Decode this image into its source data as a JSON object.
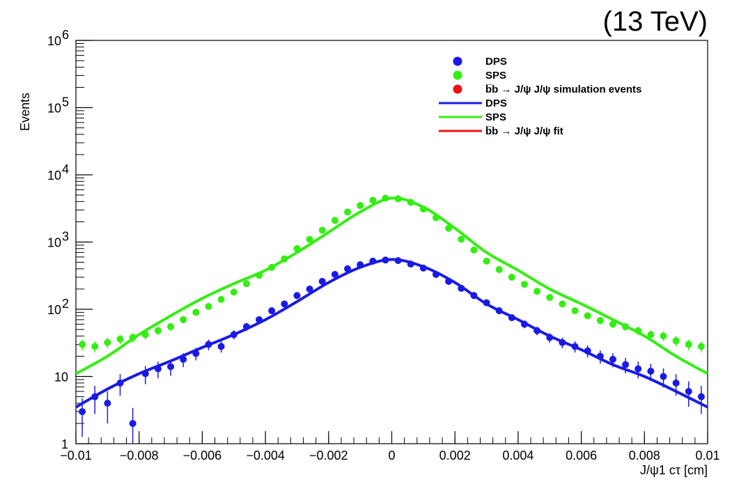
{
  "energy_label": "(13 TeV)",
  "chart_data": {
    "type": "scatter",
    "xlabel": "J/ψ1 cτ [cm]",
    "ylabel": "Events",
    "xlim": [
      -0.01,
      0.01
    ],
    "ylim": [
      1,
      1000000
    ],
    "yscale": "log",
    "grid": false,
    "legend_position": "top-right",
    "x_ticks": [
      -0.01,
      -0.008,
      -0.006,
      -0.004,
      -0.002,
      0,
      0.002,
      0.004,
      0.006,
      0.008,
      0.01
    ],
    "x_tick_labels": [
      "−0.01",
      "−0.008",
      "−0.006",
      "−0.004",
      "−0.002",
      "0",
      "0.002",
      "0.004",
      "0.006",
      "0.008",
      "0.01"
    ],
    "y_ticks": [
      {
        "value": 1,
        "base": "1",
        "exp": ""
      },
      {
        "value": 10,
        "base": "10",
        "exp": ""
      },
      {
        "value": 100,
        "base": "10",
        "exp": "2"
      },
      {
        "value": 1000,
        "base": "10",
        "exp": "3"
      },
      {
        "value": 10000,
        "base": "10",
        "exp": "4"
      },
      {
        "value": 100000,
        "base": "10",
        "exp": "5"
      },
      {
        "value": 1000000,
        "base": "10",
        "exp": "6"
      }
    ],
    "legend": [
      {
        "kind": "marker",
        "color": "#1a1ae6",
        "label": "DPS"
      },
      {
        "kind": "marker",
        "color": "#33ee11",
        "label": "SPS"
      },
      {
        "kind": "marker",
        "color": "#ee1111",
        "label": "b̅b → J/ψ J/ψ simulation events"
      },
      {
        "kind": "line",
        "color": "#1a1ae6",
        "label": "DPS"
      },
      {
        "kind": "line",
        "color": "#33ee11",
        "label": "SPS"
      },
      {
        "kind": "line",
        "color": "#ee1111",
        "label": "b̅b → J/ψ J/ψ fit"
      }
    ],
    "series": [
      {
        "type": "fit",
        "color": "#33ee11",
        "x": [
          -0.01,
          -0.009,
          -0.008,
          -0.007,
          -0.006,
          -0.005,
          -0.004,
          -0.003,
          -0.002,
          -0.001,
          0,
          0.001,
          0.002,
          0.003,
          0.004,
          0.005,
          0.006,
          0.007,
          0.008,
          0.009,
          0.01
        ],
        "y": [
          11,
          20,
          42,
          80,
          145,
          240,
          380,
          700,
          1400,
          2800,
          4500,
          3300,
          1600,
          700,
          380,
          200,
          120,
          70,
          40,
          20,
          11
        ]
      },
      {
        "type": "fit",
        "color": "#1a1ae6",
        "x": [
          -0.01,
          -0.009,
          -0.008,
          -0.007,
          -0.006,
          -0.005,
          -0.004,
          -0.003,
          -0.002,
          -0.001,
          0,
          0.001,
          0.002,
          0.003,
          0.004,
          0.005,
          0.006,
          0.007,
          0.008,
          0.009,
          0.01
        ],
        "y": [
          3.5,
          6.5,
          11,
          17,
          27,
          42,
          70,
          130,
          250,
          420,
          550,
          430,
          250,
          120,
          70,
          40,
          25,
          15,
          10,
          6,
          3.5
        ]
      },
      {
        "type": "points",
        "color": "#33ee11",
        "x": [
          -0.0098,
          -0.0094,
          -0.009,
          -0.0086,
          -0.0082,
          -0.0078,
          -0.0074,
          -0.007,
          -0.0066,
          -0.0062,
          -0.0058,
          -0.0054,
          -0.005,
          -0.0046,
          -0.0042,
          -0.0038,
          -0.0034,
          -0.003,
          -0.0026,
          -0.0022,
          -0.0018,
          -0.0014,
          -0.001,
          -0.0006,
          -0.0002,
          0.0002,
          0.0006,
          0.001,
          0.0014,
          0.0018,
          0.0022,
          0.0026,
          0.003,
          0.0034,
          0.0038,
          0.0042,
          0.0046,
          0.005,
          0.0054,
          0.0058,
          0.0062,
          0.0066,
          0.007,
          0.0074,
          0.0078,
          0.0082,
          0.0086,
          0.009,
          0.0094,
          0.0098
        ],
        "y": [
          30,
          28,
          32,
          36,
          38,
          42,
          48,
          55,
          70,
          90,
          110,
          140,
          180,
          240,
          320,
          420,
          560,
          800,
          1100,
          1500,
          2100,
          2800,
          3500,
          4200,
          4500,
          4400,
          3900,
          3100,
          2300,
          1600,
          1100,
          760,
          520,
          390,
          300,
          235,
          185,
          150,
          120,
          95,
          80,
          68,
          60,
          55,
          48,
          42,
          40,
          34,
          30,
          28
        ]
      },
      {
        "type": "points",
        "color": "#1a1ae6",
        "x": [
          -0.0098,
          -0.0094,
          -0.009,
          -0.0086,
          -0.0082,
          -0.0078,
          -0.0074,
          -0.007,
          -0.0066,
          -0.0062,
          -0.0058,
          -0.0054,
          -0.005,
          -0.0046,
          -0.0042,
          -0.0038,
          -0.0034,
          -0.003,
          -0.0026,
          -0.0022,
          -0.0018,
          -0.0014,
          -0.001,
          -0.0006,
          -0.0002,
          0.0002,
          0.0006,
          0.001,
          0.0014,
          0.0018,
          0.0022,
          0.0026,
          0.003,
          0.0034,
          0.0038,
          0.0042,
          0.0046,
          0.005,
          0.0054,
          0.0058,
          0.0062,
          0.0066,
          0.007,
          0.0074,
          0.0078,
          0.0082,
          0.0086,
          0.009,
          0.0094,
          0.0098
        ],
        "y": [
          3,
          5,
          4,
          8,
          2,
          11,
          13,
          14,
          18,
          22,
          30,
          28,
          42,
          55,
          70,
          95,
          120,
          160,
          200,
          260,
          330,
          400,
          460,
          520,
          540,
          530,
          470,
          410,
          330,
          260,
          205,
          160,
          125,
          95,
          75,
          60,
          48,
          38,
          32,
          28,
          24,
          20,
          18,
          15,
          13,
          12,
          10,
          8,
          6,
          5
        ]
      }
    ]
  }
}
